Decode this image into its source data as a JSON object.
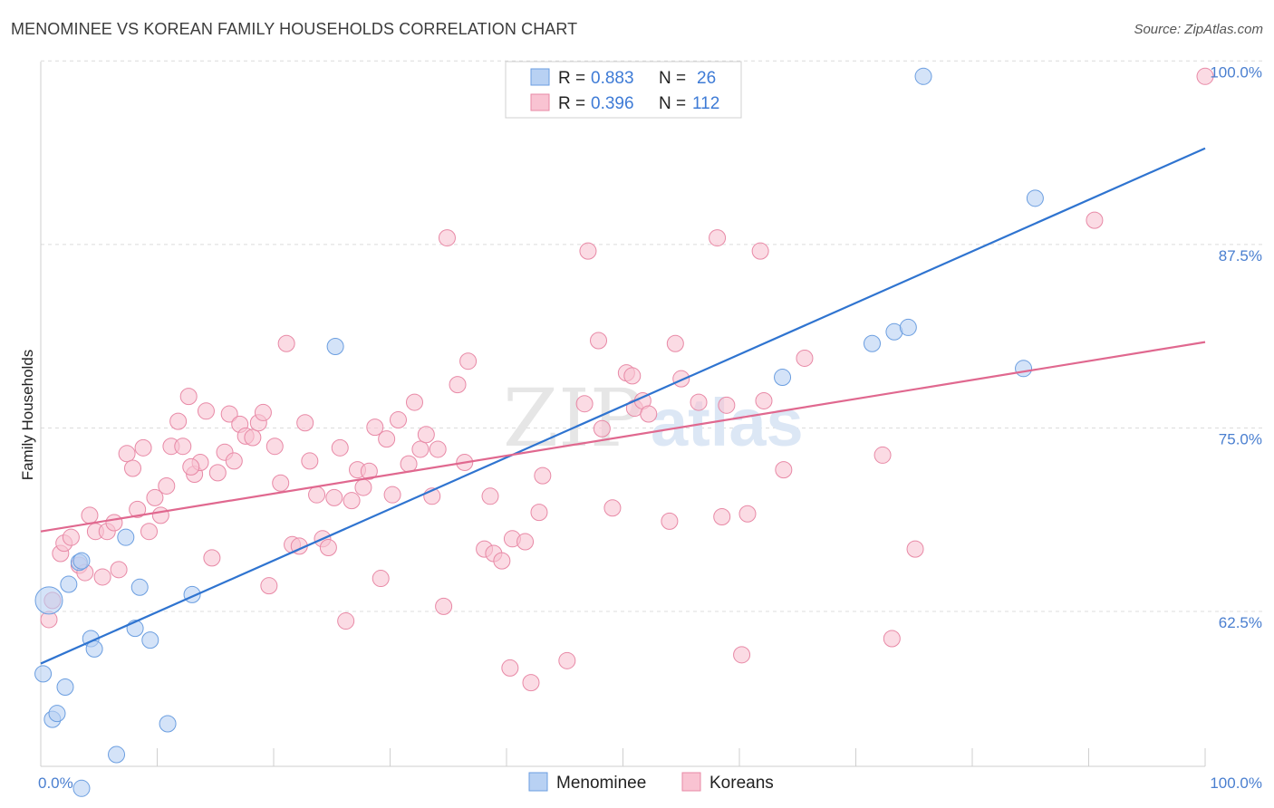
{
  "title": "MENOMINEE VS KOREAN FAMILY HOUSEHOLDS CORRELATION CHART",
  "source": "Source: ZipAtlas.com",
  "watermark": {
    "zip": "ZIP",
    "atlas": "atlas"
  },
  "colors": {
    "menominee_fill": "#b8d1f3",
    "menominee_stroke": "#6b9ee0",
    "menominee_line": "#2f74d0",
    "koreans_fill": "#f9c3d2",
    "koreans_stroke": "#e889a6",
    "koreans_line": "#e0688f",
    "grid": "#dcdcdc",
    "tick_label": "#4a7fd0"
  },
  "legend": {
    "menominee": {
      "r_label": "R =",
      "r_value": "0.883",
      "n_label": "N =",
      "n_value": "26"
    },
    "koreans": {
      "r_label": "R =",
      "r_value": "0.396",
      "n_label": "N =",
      "n_value": "112"
    }
  },
  "chart_data": {
    "type": "scatter",
    "title": "MENOMINEE VS KOREAN FAMILY HOUSEHOLDS CORRELATION CHART",
    "xlabel": "",
    "ylabel": "Family Households",
    "xlim": [
      0,
      100
    ],
    "ylim": [
      53.0,
      101.5
    ],
    "x_tick_labels": [
      "0.0%",
      "100.0%"
    ],
    "y_ticks": [
      {
        "value": 62.5,
        "label": "62.5%"
      },
      {
        "value": 75.0,
        "label": "75.0%"
      },
      {
        "value": 87.5,
        "label": "87.5%"
      },
      {
        "value": 100.0,
        "label": "100.0%"
      }
    ],
    "grid": true,
    "legend_position": "top-center",
    "series": [
      {
        "name": "Menominee",
        "r": 0.883,
        "n": 26,
        "trend": {
          "x": [
            0,
            100
          ],
          "y": [
            60.0,
            95.1
          ]
        },
        "points": [
          [
            0.2,
            59.3
          ],
          [
            1.0,
            56.2
          ],
          [
            1.4,
            56.6
          ],
          [
            2.1,
            58.4
          ],
          [
            2.4,
            65.4
          ],
          [
            3.3,
            66.9
          ],
          [
            3.5,
            51.5
          ],
          [
            3.5,
            67.0
          ],
          [
            4.3,
            61.7
          ],
          [
            4.6,
            61.0
          ],
          [
            6.5,
            53.8
          ],
          [
            7.3,
            68.6
          ],
          [
            8.1,
            62.4
          ],
          [
            8.5,
            65.2
          ],
          [
            9.4,
            61.6
          ],
          [
            10.9,
            55.9
          ],
          [
            13.0,
            64.7
          ],
          [
            25.3,
            81.6
          ],
          [
            63.7,
            79.5
          ],
          [
            71.4,
            81.8
          ],
          [
            73.3,
            82.6
          ],
          [
            75.8,
            100.0
          ],
          [
            84.4,
            80.1
          ],
          [
            85.4,
            91.7
          ],
          [
            74.5,
            82.9
          ],
          [
            0.7,
            64.3
          ]
        ],
        "sizes": {
          "0.7,64.3": "large"
        }
      },
      {
        "name": "Koreans",
        "r": 0.396,
        "n": 112,
        "trend": {
          "x": [
            0,
            100
          ],
          "y": [
            69.0,
            81.9
          ]
        },
        "points": [
          [
            0.7,
            63.0
          ],
          [
            1.0,
            64.3
          ],
          [
            1.7,
            67.5
          ],
          [
            2.0,
            68.2
          ],
          [
            2.6,
            68.6
          ],
          [
            3.3,
            66.7
          ],
          [
            3.8,
            66.2
          ],
          [
            4.2,
            70.1
          ],
          [
            4.7,
            69.0
          ],
          [
            5.3,
            65.9
          ],
          [
            5.7,
            69.0
          ],
          [
            6.3,
            69.6
          ],
          [
            6.7,
            66.4
          ],
          [
            7.4,
            74.3
          ],
          [
            7.9,
            73.3
          ],
          [
            8.3,
            70.5
          ],
          [
            8.8,
            74.7
          ],
          [
            9.3,
            69.0
          ],
          [
            9.8,
            71.3
          ],
          [
            10.3,
            70.1
          ],
          [
            10.8,
            72.1
          ],
          [
            11.2,
            74.8
          ],
          [
            11.8,
            76.5
          ],
          [
            12.2,
            74.8
          ],
          [
            12.7,
            78.2
          ],
          [
            13.2,
            72.9
          ],
          [
            13.7,
            73.7
          ],
          [
            14.2,
            77.2
          ],
          [
            14.7,
            67.2
          ],
          [
            15.2,
            73.0
          ],
          [
            15.8,
            74.4
          ],
          [
            16.2,
            77.0
          ],
          [
            16.6,
            73.8
          ],
          [
            17.1,
            76.3
          ],
          [
            17.6,
            75.5
          ],
          [
            18.2,
            75.4
          ],
          [
            18.7,
            76.4
          ],
          [
            19.1,
            77.1
          ],
          [
            19.6,
            65.3
          ],
          [
            20.1,
            74.8
          ],
          [
            20.6,
            72.3
          ],
          [
            21.1,
            81.8
          ],
          [
            21.6,
            68.1
          ],
          [
            22.2,
            68.0
          ],
          [
            22.7,
            76.4
          ],
          [
            23.1,
            73.8
          ],
          [
            23.7,
            71.5
          ],
          [
            24.2,
            68.5
          ],
          [
            24.7,
            67.9
          ],
          [
            25.2,
            71.3
          ],
          [
            25.7,
            74.7
          ],
          [
            26.2,
            62.9
          ],
          [
            26.7,
            71.1
          ],
          [
            27.2,
            73.2
          ],
          [
            27.7,
            72.0
          ],
          [
            28.2,
            73.1
          ],
          [
            28.7,
            76.1
          ],
          [
            29.2,
            65.8
          ],
          [
            29.7,
            75.3
          ],
          [
            30.2,
            71.5
          ],
          [
            30.7,
            76.6
          ],
          [
            31.6,
            73.6
          ],
          [
            32.1,
            77.8
          ],
          [
            32.6,
            74.6
          ],
          [
            33.1,
            75.6
          ],
          [
            33.6,
            71.4
          ],
          [
            34.1,
            74.6
          ],
          [
            34.6,
            63.9
          ],
          [
            34.9,
            89.0
          ],
          [
            35.8,
            79.0
          ],
          [
            36.4,
            73.7
          ],
          [
            36.7,
            80.6
          ],
          [
            38.6,
            71.4
          ],
          [
            38.1,
            67.8
          ],
          [
            38.9,
            67.5
          ],
          [
            39.6,
            67.0
          ],
          [
            40.3,
            59.7
          ],
          [
            40.5,
            68.5
          ],
          [
            41.6,
            68.3
          ],
          [
            42.1,
            58.7
          ],
          [
            42.8,
            70.3
          ],
          [
            43.1,
            72.8
          ],
          [
            45.2,
            60.2
          ],
          [
            46.7,
            77.7
          ],
          [
            47.0,
            88.1
          ],
          [
            47.9,
            82.0
          ],
          [
            48.2,
            76.0
          ],
          [
            49.1,
            70.6
          ],
          [
            50.3,
            79.8
          ],
          [
            50.8,
            79.6
          ],
          [
            51.0,
            77.4
          ],
          [
            51.7,
            77.9
          ],
          [
            52.2,
            77.0
          ],
          [
            54.0,
            69.7
          ],
          [
            54.5,
            81.8
          ],
          [
            55.0,
            79.4
          ],
          [
            56.5,
            77.8
          ],
          [
            58.1,
            89.0
          ],
          [
            58.5,
            70.0
          ],
          [
            58.9,
            77.6
          ],
          [
            60.2,
            60.6
          ],
          [
            60.7,
            70.2
          ],
          [
            61.8,
            88.1
          ],
          [
            62.1,
            77.9
          ],
          [
            63.8,
            73.2
          ],
          [
            65.6,
            80.8
          ],
          [
            72.3,
            74.2
          ],
          [
            73.1,
            61.7
          ],
          [
            75.1,
            67.8
          ],
          [
            90.5,
            90.2
          ],
          [
            100.0,
            100.0
          ],
          [
            12.9,
            73.4
          ]
        ],
        "sizes": {
          "0.7,63.0": "large",
          "1.0,64.3": "large"
        }
      }
    ]
  },
  "bottom_legend": [
    "Menominee",
    "Koreans"
  ]
}
